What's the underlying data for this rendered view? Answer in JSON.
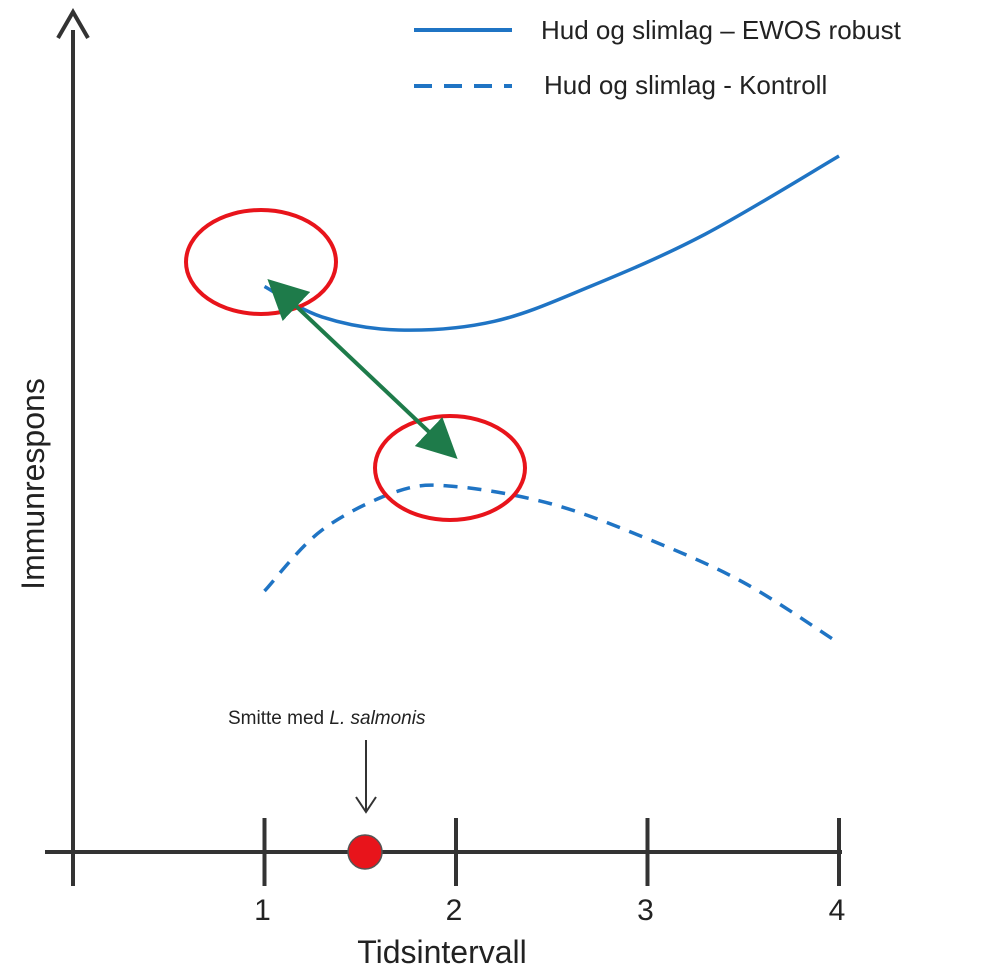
{
  "chart_data": {
    "type": "line",
    "title": "",
    "xlabel": "Tidsintervall",
    "ylabel": "Immunrespons",
    "x_ticks": [
      "1",
      "2",
      "3",
      "4"
    ],
    "xlim": [
      0,
      4
    ],
    "grid": false,
    "legend": "top-right",
    "series": [
      {
        "name": "Hud og slimlag – EWOS robust",
        "style": "solid",
        "color": "#1f74c4",
        "x": [
          1.0,
          1.3,
          1.7,
          2.2,
          2.7,
          3.3,
          4.0
        ],
        "y": [
          6.5,
          6.15,
          6.0,
          6.1,
          6.5,
          7.1,
          8.0
        ]
      },
      {
        "name": "Hud og slimlag - Kontroll",
        "style": "dashed",
        "color": "#1f74c4",
        "x": [
          1.0,
          1.3,
          1.7,
          2.0,
          2.5,
          3.0,
          3.5,
          4.0
        ],
        "y": [
          3.0,
          3.7,
          4.15,
          4.2,
          4.0,
          3.6,
          3.1,
          2.4
        ]
      }
    ],
    "annotations": {
      "infection_label_prefix": "Smitte med ",
      "infection_label_species": "L. salmonis",
      "infection_x": 1.5,
      "highlight_color": "#e8141b",
      "arrow_color": "#1e7b4a",
      "marker_color": "#e8141b"
    }
  }
}
